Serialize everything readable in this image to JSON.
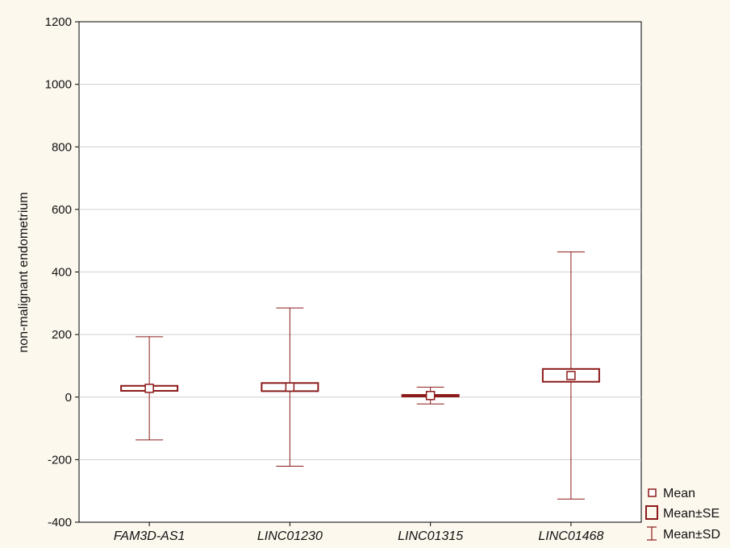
{
  "chart_data": {
    "type": "box",
    "title": "",
    "xlabel": "",
    "ylabel": "non-malignant endometrium",
    "ylim": [
      -400,
      1200
    ],
    "yticks": [
      -400,
      -200,
      0,
      200,
      400,
      600,
      800,
      1000,
      1200
    ],
    "grid": "horizontal",
    "legend_position": "bottom-right",
    "categories": [
      "FAM3D-AS1",
      "LINC01230",
      "LINC01315",
      "LINC01468"
    ],
    "series": [
      {
        "category": "FAM3D-AS1",
        "mean": 28,
        "se_low": 20,
        "se_high": 36,
        "sd_low": -137,
        "sd_high": 193
      },
      {
        "category": "LINC01230",
        "mean": 32,
        "se_low": 19,
        "se_high": 45,
        "sd_low": -221,
        "sd_high": 285
      },
      {
        "category": "LINC01315",
        "mean": 5,
        "se_low": 3,
        "se_high": 7,
        "sd_low": -22,
        "sd_high": 32
      },
      {
        "category": "LINC01468",
        "mean": 69,
        "se_low": 49,
        "se_high": 90,
        "sd_low": -326,
        "sd_high": 464
      }
    ],
    "legend": [
      {
        "symbol": "mean",
        "label": "Mean"
      },
      {
        "symbol": "se",
        "label": "Mean±SE"
      },
      {
        "symbol": "sd",
        "label": "Mean±SD"
      }
    ],
    "colors": {
      "series": "#8b1a1a",
      "grid": "#d0d0d0",
      "plot_bg": "#ffffff",
      "page_bg": "#fdf8ee"
    }
  }
}
